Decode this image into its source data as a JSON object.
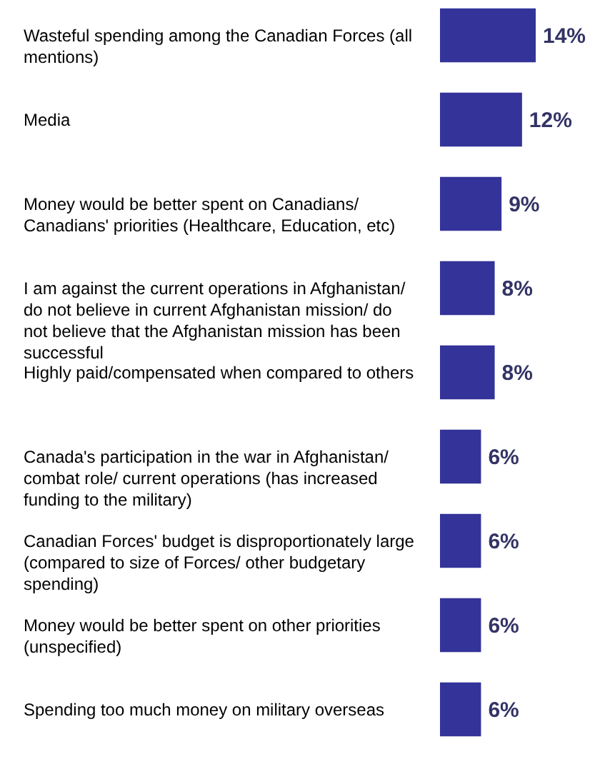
{
  "chart_data": {
    "type": "bar",
    "orientation": "horizontal",
    "categories": [
      "Wasteful spending among the Canadian Forces (all mentions)",
      "Media",
      "Money would be better spent on Canadians/ Canadians' priorities (Healthcare, Education, etc)",
      "I am against the current operations in Afghanistan/ do not believe in current Afghanistan mission/ do not believe that the Afghanistan mission has been successful",
      "Highly paid/compensated when compared to others",
      "Canada's participation in the war in Afghanistan/ combat role/ current operations (has increased funding to the military)",
      "Canadian Forces' budget is disproportionately large (compared to size of Forces/ other budgetary spending)",
      "Money would be better spent on other priorities (unspecified)",
      "Spending too much money on military overseas"
    ],
    "values": [
      14,
      12,
      9,
      8,
      8,
      6,
      6,
      6,
      6
    ],
    "value_labels": [
      "14%",
      "12%",
      "9%",
      "8%",
      "8%",
      "6%",
      "6%",
      "6%",
      "6%"
    ],
    "color": "#333399"
  }
}
